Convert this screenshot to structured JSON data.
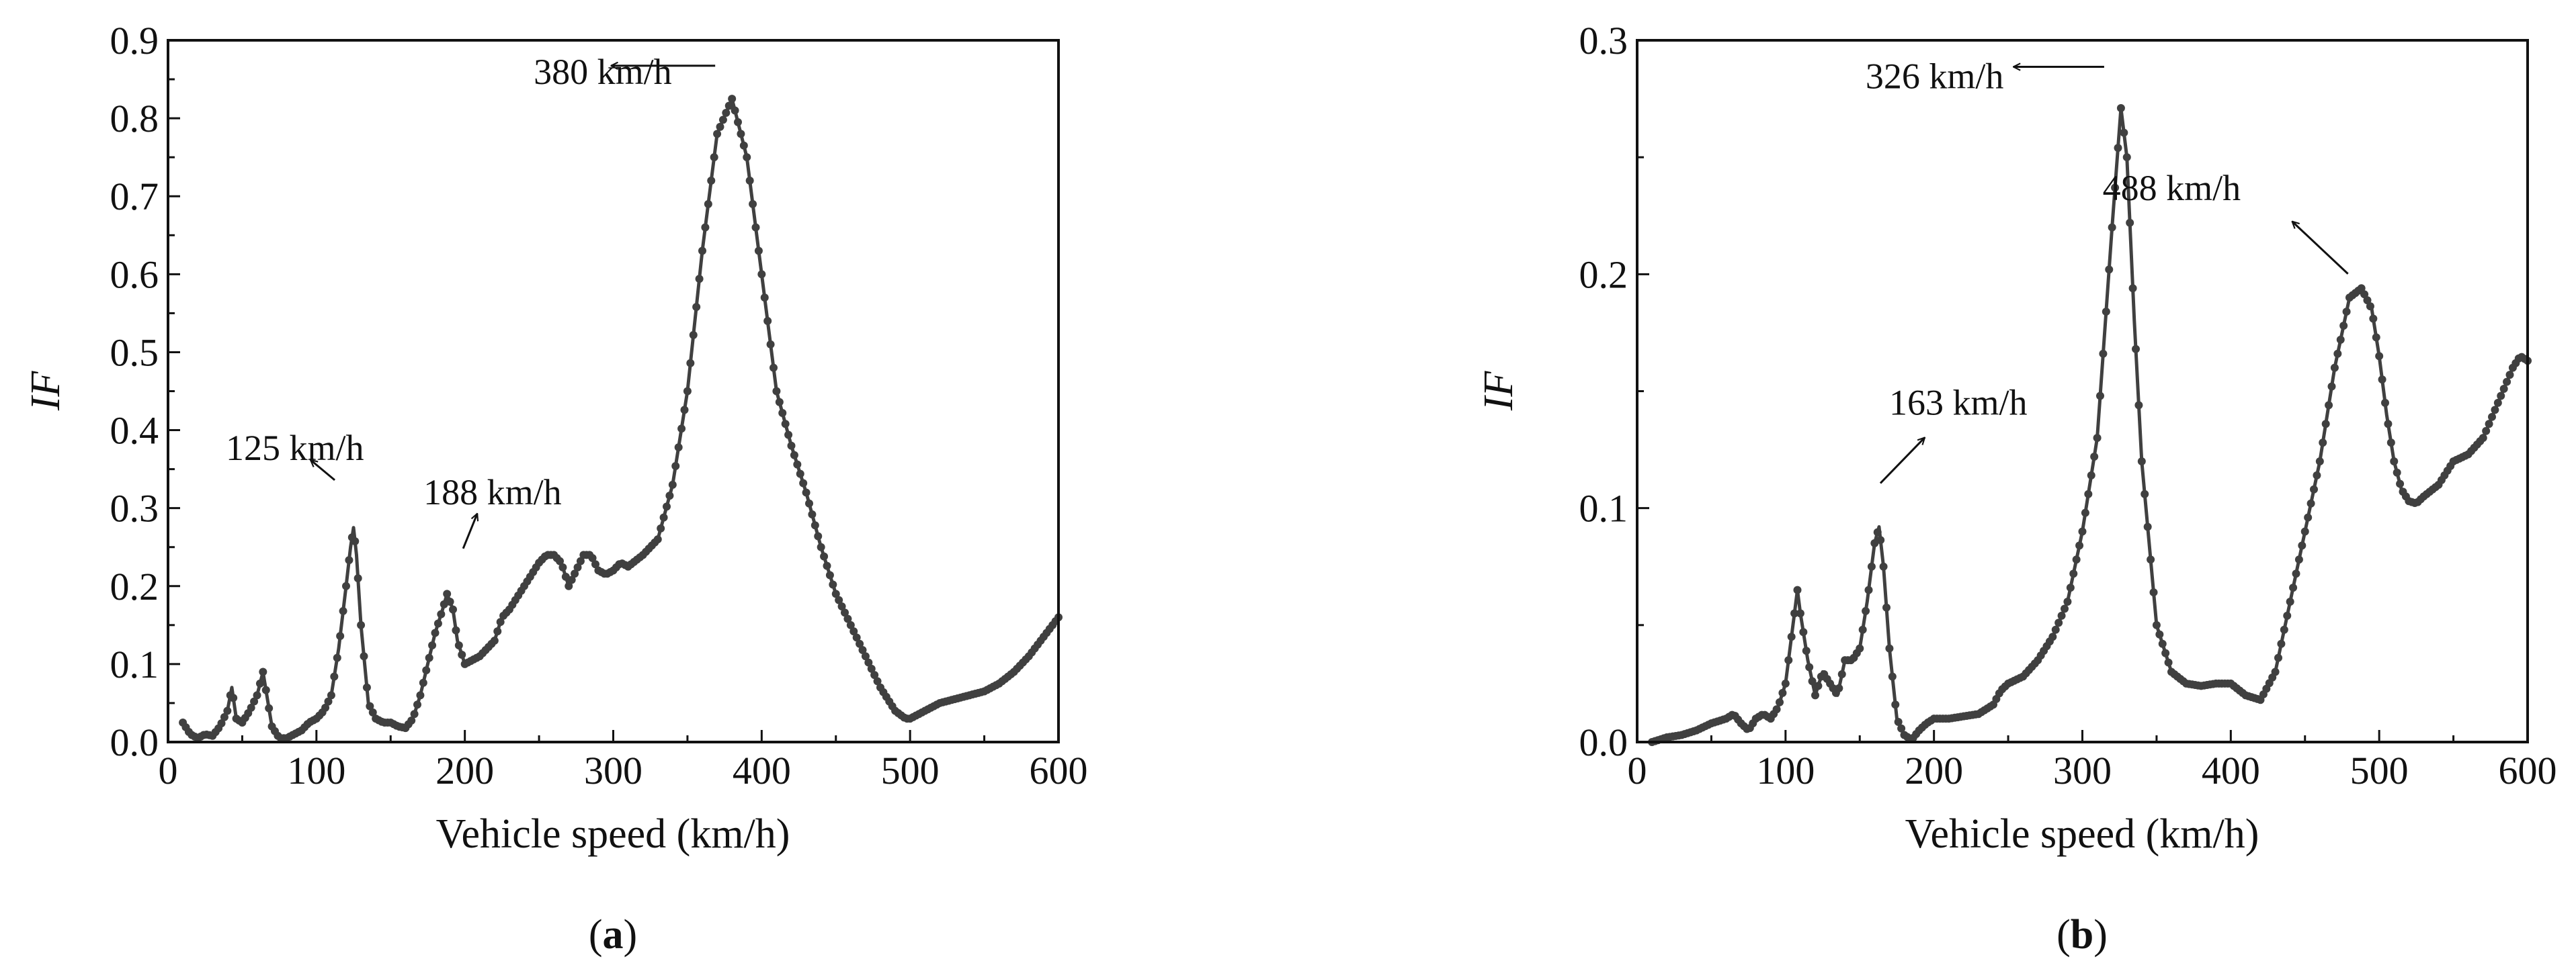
{
  "chart_data": [
    {
      "type": "scatter",
      "panel_label": "a",
      "xlabel": "Vehicle speed (km/h)",
      "ylabel": "IF",
      "xlim": [
        0,
        600
      ],
      "ylim": [
        0,
        0.9
      ],
      "xticks": [
        "0",
        "100",
        "200",
        "300",
        "400",
        "500",
        "600"
      ],
      "yticks": [
        "0.0",
        "0.1",
        "0.2",
        "0.3",
        "0.4",
        "0.5",
        "0.6",
        "0.7",
        "0.8",
        "0.9"
      ],
      "grid": false,
      "marker_color": "#404040",
      "series": [
        {
          "x": [
            10,
            15,
            20,
            25,
            30,
            35,
            40,
            43,
            46,
            50,
            55,
            60,
            64,
            70,
            75,
            80,
            85,
            90,
            95,
            100,
            105,
            110,
            115,
            120,
            123,
            125,
            127,
            130,
            135,
            140,
            145,
            150,
            155,
            160,
            165,
            170,
            175,
            180,
            185,
            188,
            192,
            195,
            200,
            205,
            210,
            215,
            220,
            225,
            230,
            240,
            250,
            255,
            260,
            265,
            270,
            275,
            280,
            285,
            290,
            295,
            300,
            305,
            310,
            320,
            330,
            340,
            350,
            360,
            370,
            380,
            390,
            400,
            410,
            420,
            430,
            440,
            450,
            460,
            470,
            480,
            490,
            497,
            500,
            510,
            520,
            530,
            540,
            550,
            560,
            570,
            580,
            590,
            600
          ],
          "y": [
            0.025,
            0.01,
            0.005,
            0.01,
            0.008,
            0.02,
            0.04,
            0.07,
            0.03,
            0.025,
            0.04,
            0.06,
            0.09,
            0.02,
            0.005,
            0.005,
            0.01,
            0.015,
            0.025,
            0.03,
            0.04,
            0.06,
            0.12,
            0.2,
            0.25,
            0.275,
            0.24,
            0.15,
            0.05,
            0.03,
            0.025,
            0.025,
            0.02,
            0.018,
            0.03,
            0.06,
            0.1,
            0.14,
            0.17,
            0.19,
            0.17,
            0.13,
            0.1,
            0.105,
            0.11,
            0.12,
            0.13,
            0.16,
            0.17,
            0.2,
            0.23,
            0.24,
            0.24,
            0.23,
            0.2,
            0.22,
            0.24,
            0.24,
            0.22,
            0.215,
            0.22,
            0.23,
            0.225,
            0.24,
            0.26,
            0.33,
            0.45,
            0.63,
            0.78,
            0.825,
            0.75,
            0.6,
            0.45,
            0.38,
            0.32,
            0.25,
            0.19,
            0.15,
            0.11,
            0.07,
            0.04,
            0.03,
            0.03,
            0.04,
            0.05,
            0.055,
            0.06,
            0.065,
            0.075,
            0.09,
            0.11,
            0.135,
            0.16
          ]
        }
      ],
      "annotations": [
        {
          "text": "380 km/h",
          "x": 380,
          "y": 0.82
        },
        {
          "text": "125 km/h",
          "x": 125,
          "y": 0.28
        },
        {
          "text": "188 km/h",
          "x": 188,
          "y": 0.2
        }
      ]
    },
    {
      "type": "scatter",
      "panel_label": "b",
      "xlabel": "Vehicle speed (km/h)",
      "ylabel": "IF",
      "xlim": [
        0,
        600
      ],
      "ylim": [
        0,
        0.3
      ],
      "xticks": [
        "0",
        "100",
        "200",
        "300",
        "400",
        "500",
        "600"
      ],
      "yticks": [
        "0.0",
        "0.1",
        "0.2",
        "0.3"
      ],
      "grid": false,
      "marker_color": "#404040",
      "series": [
        {
          "x": [
            10,
            20,
            30,
            40,
            50,
            60,
            65,
            70,
            75,
            80,
            85,
            90,
            95,
            100,
            105,
            108,
            110,
            115,
            120,
            125,
            130,
            135,
            140,
            145,
            150,
            155,
            160,
            163,
            166,
            170,
            175,
            180,
            185,
            190,
            195,
            200,
            210,
            220,
            230,
            240,
            245,
            250,
            260,
            270,
            280,
            290,
            300,
            310,
            320,
            326,
            330,
            335,
            340,
            350,
            360,
            370,
            380,
            390,
            400,
            410,
            420,
            430,
            440,
            450,
            460,
            470,
            480,
            488,
            495,
            500,
            505,
            510,
            515,
            520,
            525,
            530,
            540,
            550,
            560,
            570,
            580,
            590,
            595,
            600
          ],
          "y": [
            0.0,
            0.002,
            0.003,
            0.005,
            0.008,
            0.01,
            0.012,
            0.008,
            0.005,
            0.01,
            0.012,
            0.01,
            0.015,
            0.025,
            0.05,
            0.065,
            0.055,
            0.035,
            0.02,
            0.03,
            0.025,
            0.02,
            0.035,
            0.035,
            0.04,
            0.06,
            0.085,
            0.092,
            0.075,
            0.04,
            0.01,
            0.003,
            0.001,
            0.005,
            0.008,
            0.01,
            0.01,
            0.011,
            0.012,
            0.016,
            0.022,
            0.025,
            0.028,
            0.035,
            0.045,
            0.06,
            0.09,
            0.13,
            0.22,
            0.271,
            0.25,
            0.18,
            0.12,
            0.05,
            0.03,
            0.025,
            0.024,
            0.025,
            0.025,
            0.02,
            0.018,
            0.03,
            0.06,
            0.09,
            0.12,
            0.16,
            0.19,
            0.194,
            0.185,
            0.165,
            0.14,
            0.12,
            0.108,
            0.103,
            0.102,
            0.105,
            0.11,
            0.12,
            0.123,
            0.13,
            0.145,
            0.16,
            0.165,
            0.163
          ]
        }
      ],
      "annotations": [
        {
          "text": "326 km/h",
          "x": 326,
          "y": 0.272
        },
        {
          "text": "488 km/h",
          "x": 488,
          "y": 0.195
        },
        {
          "text": "163 km/h",
          "x": 163,
          "y": 0.094
        }
      ]
    }
  ]
}
